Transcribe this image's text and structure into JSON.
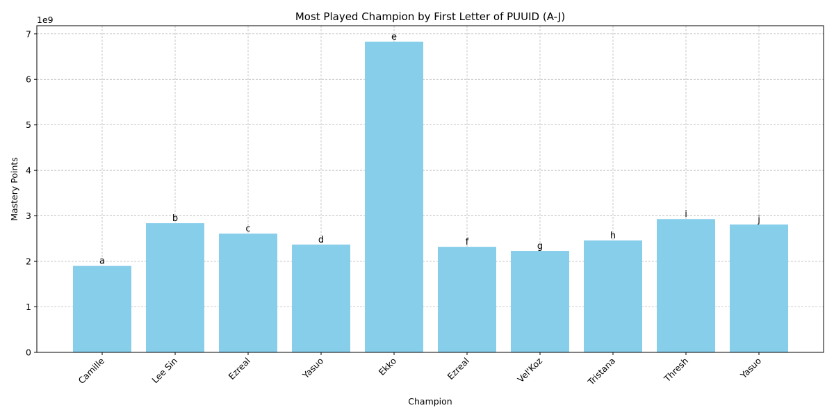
{
  "chart_data": {
    "type": "bar",
    "title": "Most Played Champion by First Letter of PUUID (A-J)",
    "xlabel": "Champion",
    "ylabel": "Mastery Points",
    "offset_label": "1e9",
    "categories": [
      "Camille",
      "Lee Sin",
      "Ezreal",
      "Yasuo",
      "Ekko",
      "Ezreal",
      "Vel'Koz",
      "Tristana",
      "Thresh",
      "Yasuo"
    ],
    "bar_labels": [
      "a",
      "b",
      "c",
      "d",
      "e",
      "f",
      "g",
      "h",
      "i",
      "j"
    ],
    "values": [
      1900000000,
      2840000000,
      2610000000,
      2370000000,
      6830000000,
      2320000000,
      2230000000,
      2460000000,
      2930000000,
      2810000000
    ],
    "ylim": [
      0,
      7180000000
    ],
    "yticks": [
      0,
      1000000000,
      2000000000,
      3000000000,
      4000000000,
      5000000000,
      6000000000,
      7000000000
    ],
    "ytick_labels": [
      "0",
      "1",
      "2",
      "3",
      "4",
      "5",
      "6",
      "7"
    ],
    "grid": true,
    "bar_color": "#87ceeb"
  }
}
